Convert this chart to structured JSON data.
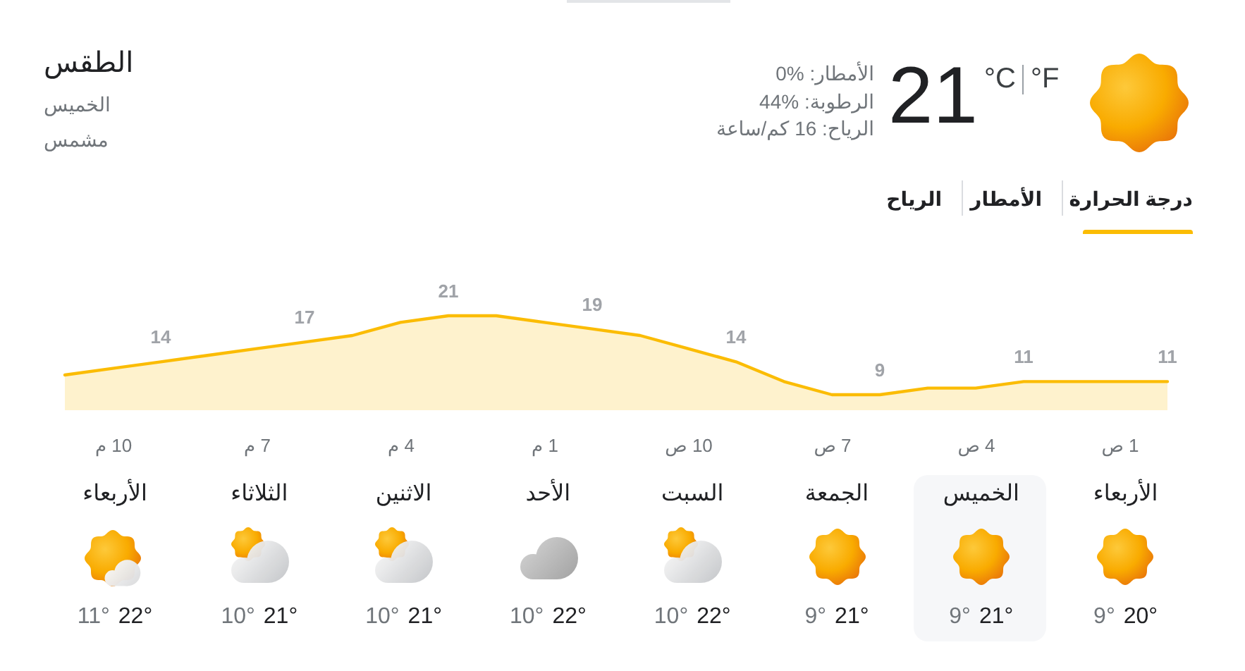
{
  "chart_data": [
    {
      "type": "other",
      "title": "الطقس",
      "subtitle": "الخميس",
      "annotations": [
        "مشمس",
        "21",
        "°C",
        "°F",
        "الأمطار: 0%",
        "الرطوبة: 44%",
        "الرياح: 16 كم/ساعة",
        "درجة الحرارة",
        "الأمطار",
        "الرياح"
      ]
    },
    {
      "type": "area",
      "categories": [
        null,
        "10 م",
        null,
        null,
        "7 م",
        null,
        null,
        "4 م",
        null,
        null,
        "1 م",
        null,
        null,
        "10 ص",
        null,
        null,
        "7 ص",
        null,
        null,
        "4 ص",
        null,
        null,
        "1 ص",
        null
      ],
      "values": [
        12,
        13,
        14,
        15,
        16,
        17,
        18,
        20,
        21,
        21,
        20,
        19,
        18,
        16,
        14,
        11,
        9,
        9,
        10,
        10,
        11,
        11,
        11,
        11
      ],
      "value_labels": [
        null,
        null,
        "14",
        null,
        null,
        "17",
        null,
        null,
        "21",
        null,
        null,
        "19",
        null,
        null,
        "14",
        null,
        null,
        "9",
        null,
        null,
        "11",
        null,
        null,
        "11"
      ],
      "color": "#fbbc04",
      "tick_labels": "x"
    },
    {
      "type": "other",
      "categories": [
        "الأربعاء",
        "الثلاثاء",
        "الاثنين",
        "الأحد",
        "السبت",
        "الجمعة",
        "الخميس",
        "الأربعاء"
      ],
      "annotations": [
        "11°",
        "22°",
        "10°",
        "21°",
        "10°",
        "21°",
        "10°",
        "22°",
        "10°",
        "22°",
        "9°",
        "21°",
        "9°",
        "21°",
        "9°",
        "20°"
      ]
    }
  ]
}
